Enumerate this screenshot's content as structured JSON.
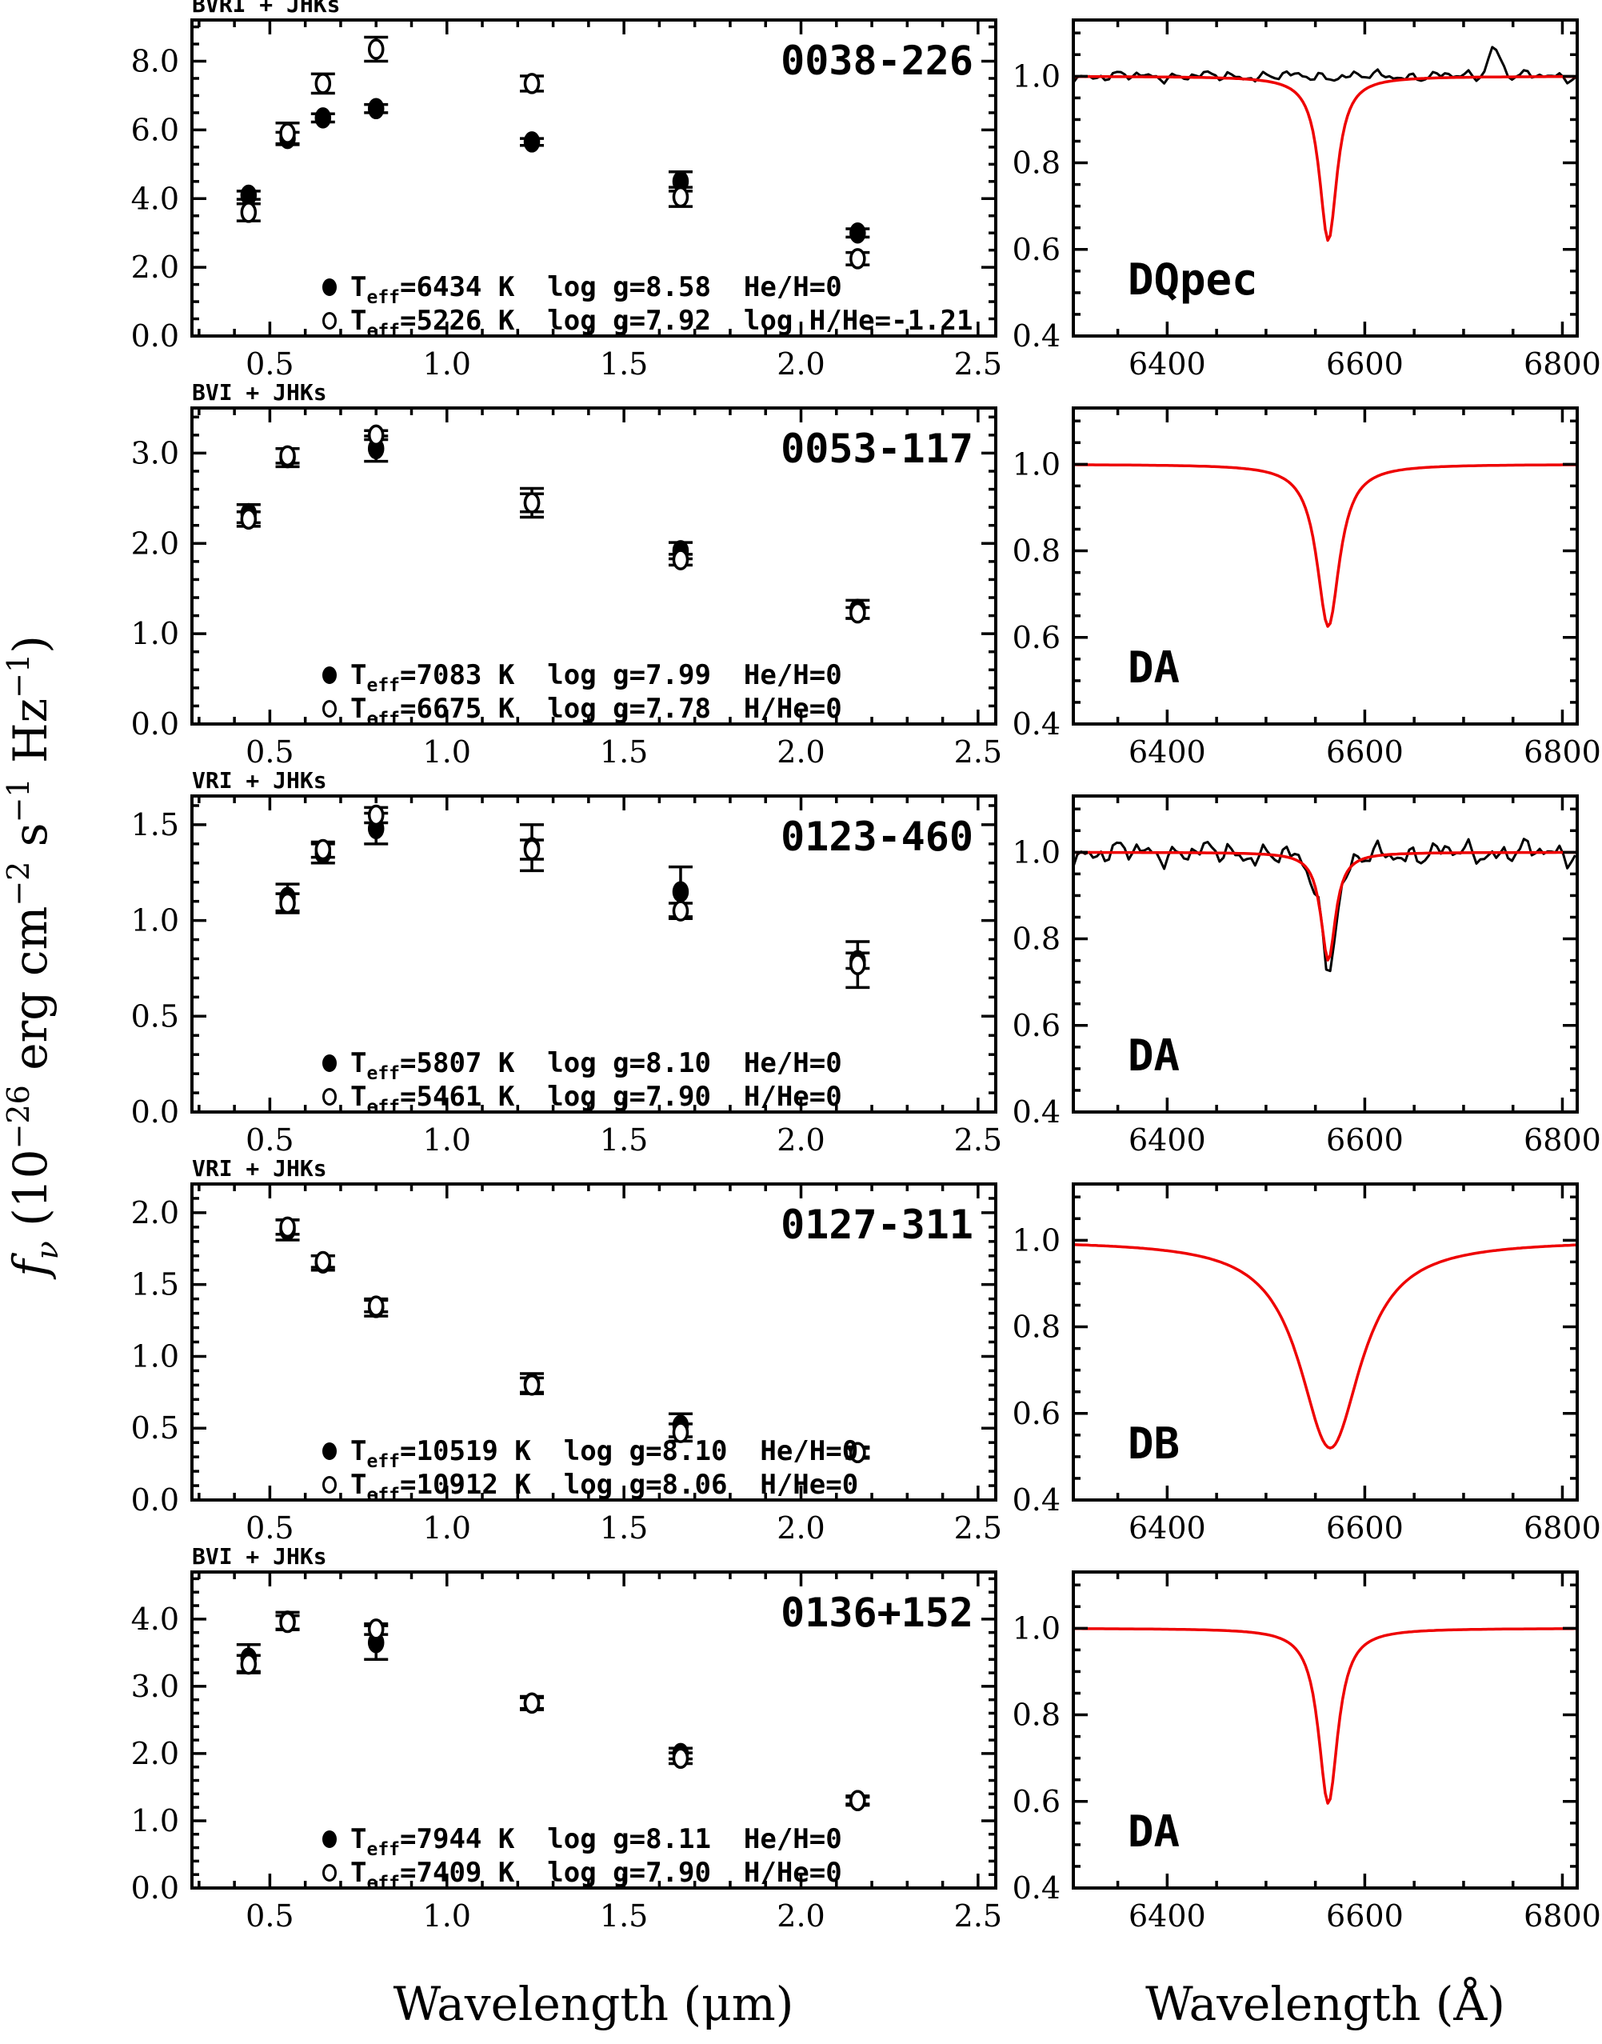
{
  "figure": {
    "xlabel_left": "Wavelength (μm)",
    "xlabel_right": "Wavelength (Å)",
    "legend_T": "T",
    "legend_sub": "eff",
    "ylabel_parts": {
      "f": "f",
      "nu": "ν",
      "p1": " (10",
      "e1": "−26",
      "p2": " erg cm",
      "e2": "−2",
      "p3": " s",
      "e3": "−1",
      "p4": " Hz",
      "e4": "−1",
      "p5": ")"
    },
    "colors": {
      "accent_red": "#ee0000",
      "black": "#000000"
    }
  },
  "chart_data": {
    "type": "multi-panel",
    "description": "White dwarf photometric SED fits (left) and H-alpha spectral fits (right)",
    "sed_axis": {
      "xlim": [
        0.28,
        2.55
      ],
      "xticks": [
        0.5,
        1.0,
        1.5,
        2.0,
        2.5
      ],
      "xtick_labels": [
        "0.5",
        "1.0",
        "1.5",
        "2.0",
        "2.5"
      ],
      "minor_x": 0.1,
      "xlabel": "Wavelength (μm)",
      "ylabel": "fν (10^-26 erg cm^-2 s^-1 Hz^-1)"
    },
    "spectrum_axis": {
      "xlim": [
        6305,
        6815
      ],
      "xticks": [
        6400,
        6600,
        6800
      ],
      "xtick_labels": [
        "6400",
        "6600",
        "6800"
      ],
      "minor_x": 50,
      "ylim": [
        0.4,
        1.13
      ],
      "yticks": [
        0.4,
        0.6,
        0.8,
        1.0
      ],
      "ytick_labels": [
        "0.4",
        "0.6",
        "0.8",
        "1.0"
      ],
      "minor_y": 0.05,
      "xlabel": "Wavelength (Å)",
      "line_center": 6563
    },
    "rows": [
      {
        "object": "0038-226",
        "filters": "BVRI + JHKs",
        "sed": {
          "type": "scatter",
          "ylim": [
            0,
            9.2
          ],
          "yticks": [
            0,
            2,
            4,
            6,
            8
          ],
          "ytick_labels": [
            "0.0",
            "2.0",
            "4.0",
            "6.0",
            "8.0"
          ],
          "minor_y": 0.5,
          "series": [
            {
              "name": "filled",
              "marker": "filled-circle",
              "x": [
                0.44,
                0.55,
                0.65,
                0.8,
                1.24,
                1.66,
                2.16
              ],
              "y": [
                4.1,
                5.75,
                6.35,
                6.62,
                5.65,
                4.5,
                3.0
              ],
              "yerr": [
                0.12,
                0.18,
                0.12,
                0.12,
                0.1,
                0.28,
                0.12
              ]
            },
            {
              "name": "open",
              "marker": "open-circle",
              "x": [
                0.44,
                0.55,
                0.65,
                0.8,
                1.24,
                1.66,
                2.16
              ],
              "y": [
                3.6,
                5.9,
                7.35,
                8.35,
                7.35,
                4.05,
                2.25
              ],
              "yerr": [
                0.25,
                0.3,
                0.28,
                0.35,
                0.22,
                0.28,
                0.18
              ]
            }
          ],
          "legend": [
            {
              "marker": "filled-circle",
              "color": "#000000",
              "label": "=6434 K  log g=8.58  He/H=0"
            },
            {
              "marker": "open-circle",
              "color": "#ee0000",
              "label": "=5226 K  log g=7.92  log H/He=-1.21"
            }
          ]
        },
        "spectrum": {
          "type": "line",
          "label": "DQpec",
          "model": {
            "color": "#ee0000",
            "center": 6563,
            "depth": 0.38,
            "gamma": 11
          },
          "observed": {
            "present": true,
            "noise": 0.012,
            "line_depth": 0,
            "spikes": [
              {
                "x": 6731,
                "h": 0.07
              }
            ]
          }
        }
      },
      {
        "object": "0053-117",
        "filters": "BVI + JHKs",
        "sed": {
          "type": "scatter",
          "ylim": [
            0,
            3.5
          ],
          "yticks": [
            0,
            1,
            2,
            3
          ],
          "ytick_labels": [
            "0.0",
            "1.0",
            "2.0",
            "3.0"
          ],
          "minor_y": 0.2,
          "series": [
            {
              "name": "filled",
              "marker": "filled-circle",
              "x": [
                0.44,
                0.55,
                0.8,
                1.24,
                1.66,
                2.16
              ],
              "y": [
                2.33,
                2.95,
                3.05,
                2.45,
                1.92,
                1.27
              ],
              "yerr": [
                0.1,
                0.1,
                0.14,
                0.16,
                0.09,
                0.1
              ]
            },
            {
              "name": "open",
              "marker": "open-circle",
              "x": [
                0.44,
                0.55,
                0.8,
                1.24,
                1.66,
                2.16
              ],
              "y": [
                2.27,
                2.97,
                3.2,
                2.45,
                1.82,
                1.23
              ],
              "yerr": [
                0.08,
                0.08,
                0.05,
                0.1,
                0.06,
                0.06
              ]
            }
          ],
          "legend": [
            {
              "marker": "filled-circle",
              "color": "#ee0000",
              "label": "=7083 K  log g=7.99  He/H=0"
            },
            {
              "marker": "open-circle",
              "color": "#000000",
              "label": "=6675 K  log g=7.78  H/He=0"
            }
          ]
        },
        "spectrum": {
          "type": "line",
          "label": "DA",
          "model": {
            "color": "#ee0000",
            "center": 6563,
            "depth": 0.375,
            "gamma": 14
          },
          "observed": {
            "present": false,
            "noise": 0,
            "line_depth": 0,
            "spikes": []
          }
        }
      },
      {
        "object": "0123-460",
        "filters": "VRI + JHKs",
        "sed": {
          "type": "scatter",
          "ylim": [
            0,
            1.65
          ],
          "yticks": [
            0,
            0.5,
            1.0,
            1.5
          ],
          "ytick_labels": [
            "0.0",
            "0.5",
            "1.0",
            "1.5"
          ],
          "minor_y": 0.1,
          "series": [
            {
              "name": "filled",
              "marker": "filled-circle",
              "x": [
                0.55,
                0.65,
                0.8,
                1.24,
                1.66,
                2.16
              ],
              "y": [
                1.12,
                1.35,
                1.48,
                1.38,
                1.15,
                0.79
              ],
              "yerr": [
                0.07,
                0.05,
                0.08,
                0.12,
                0.13,
                0.04
              ]
            },
            {
              "name": "open",
              "marker": "open-circle",
              "x": [
                0.55,
                0.65,
                0.8,
                1.24,
                1.66,
                2.16
              ],
              "y": [
                1.09,
                1.37,
                1.55,
                1.37,
                1.05,
                0.77
              ],
              "yerr": [
                0.05,
                0.04,
                0.04,
                0.05,
                0.04,
                0.12
              ]
            }
          ],
          "legend": [
            {
              "marker": "filled-circle",
              "color": "#ee0000",
              "label": "=5807 K  log g=8.10  He/H=0"
            },
            {
              "marker": "open-circle",
              "color": "#000000",
              "label": "=5461 K  log g=7.90  H/He=0"
            }
          ]
        },
        "spectrum": {
          "type": "line",
          "label": "DA",
          "model": {
            "color": "#ee0000",
            "center": 6563,
            "depth": 0.25,
            "gamma": 9
          },
          "observed": {
            "present": true,
            "noise": 0.027,
            "line_depth": 0.27,
            "spikes": []
          }
        }
      },
      {
        "object": "0127-311",
        "filters": "VRI + JHKs",
        "sed": {
          "type": "scatter",
          "ylim": [
            0,
            2.2
          ],
          "yticks": [
            0,
            0.5,
            1.0,
            1.5,
            2.0
          ],
          "ytick_labels": [
            "0.0",
            "0.5",
            "1.0",
            "1.5",
            "2.0"
          ],
          "minor_y": 0.1,
          "series": [
            {
              "name": "filled",
              "marker": "filled-circle",
              "x": [
                0.55,
                0.65,
                0.8,
                1.24,
                1.66,
                2.16
              ],
              "y": [
                1.88,
                1.65,
                1.34,
                0.81,
                0.52,
                0.33
              ],
              "yerr": [
                0.07,
                0.05,
                0.06,
                0.07,
                0.08,
                0.04
              ]
            },
            {
              "name": "open",
              "marker": "open-circle",
              "x": [
                0.55,
                0.65,
                0.8,
                1.24,
                1.66,
                2.16
              ],
              "y": [
                1.9,
                1.66,
                1.35,
                0.8,
                0.47,
                0.33
              ],
              "yerr": [
                0.05,
                0.04,
                0.04,
                0.05,
                0.06,
                0.03
              ]
            }
          ],
          "legend": [
            {
              "marker": "filled-circle",
              "color": "#000000",
              "label": "=10519 K  log g=8.10  He/H=0"
            },
            {
              "marker": "open-circle",
              "color": "#ee0000",
              "label": "=10912 K  log g=8.06  H/He=0"
            }
          ]
        },
        "spectrum": {
          "type": "line",
          "label": "DB",
          "model": {
            "color": "#ee0000",
            "center": 6565,
            "depth": 0.48,
            "gamma": 38
          },
          "observed": {
            "present": false,
            "noise": 0,
            "line_depth": 0,
            "spikes": []
          }
        }
      },
      {
        "object": "0136+152",
        "filters": "BVI + JHKs",
        "sed": {
          "type": "scatter",
          "ylim": [
            0,
            4.7
          ],
          "yticks": [
            0,
            1,
            2,
            3,
            4
          ],
          "ytick_labels": [
            "0.0",
            "1.0",
            "2.0",
            "3.0",
            "4.0"
          ],
          "minor_y": 0.2,
          "series": [
            {
              "name": "filled",
              "marker": "filled-circle",
              "x": [
                0.44,
                0.55,
                0.8,
                1.24,
                1.66,
                2.16
              ],
              "y": [
                3.42,
                3.97,
                3.65,
                2.75,
                2.0,
                1.3
              ],
              "yerr": [
                0.2,
                0.13,
                0.25,
                0.1,
                0.08,
                0.07
              ]
            },
            {
              "name": "open",
              "marker": "open-circle",
              "x": [
                0.44,
                0.55,
                0.8,
                1.24,
                1.66,
                2.16
              ],
              "y": [
                3.33,
                3.95,
                3.85,
                2.75,
                1.93,
                1.3
              ],
              "yerr": [
                0.13,
                0.1,
                0.08,
                0.08,
                0.08,
                0.05
              ]
            }
          ],
          "legend": [
            {
              "marker": "filled-circle",
              "color": "#ee0000",
              "label": "=7944 K  log g=8.11  He/H=0"
            },
            {
              "marker": "open-circle",
              "color": "#000000",
              "label": "=7409 K  log g=7.90  H/He=0"
            }
          ]
        },
        "spectrum": {
          "type": "line",
          "label": "DA",
          "model": {
            "color": "#ee0000",
            "center": 6563,
            "depth": 0.405,
            "gamma": 12
          },
          "observed": {
            "present": false,
            "noise": 0,
            "line_depth": 0,
            "spikes": []
          }
        }
      }
    ]
  }
}
